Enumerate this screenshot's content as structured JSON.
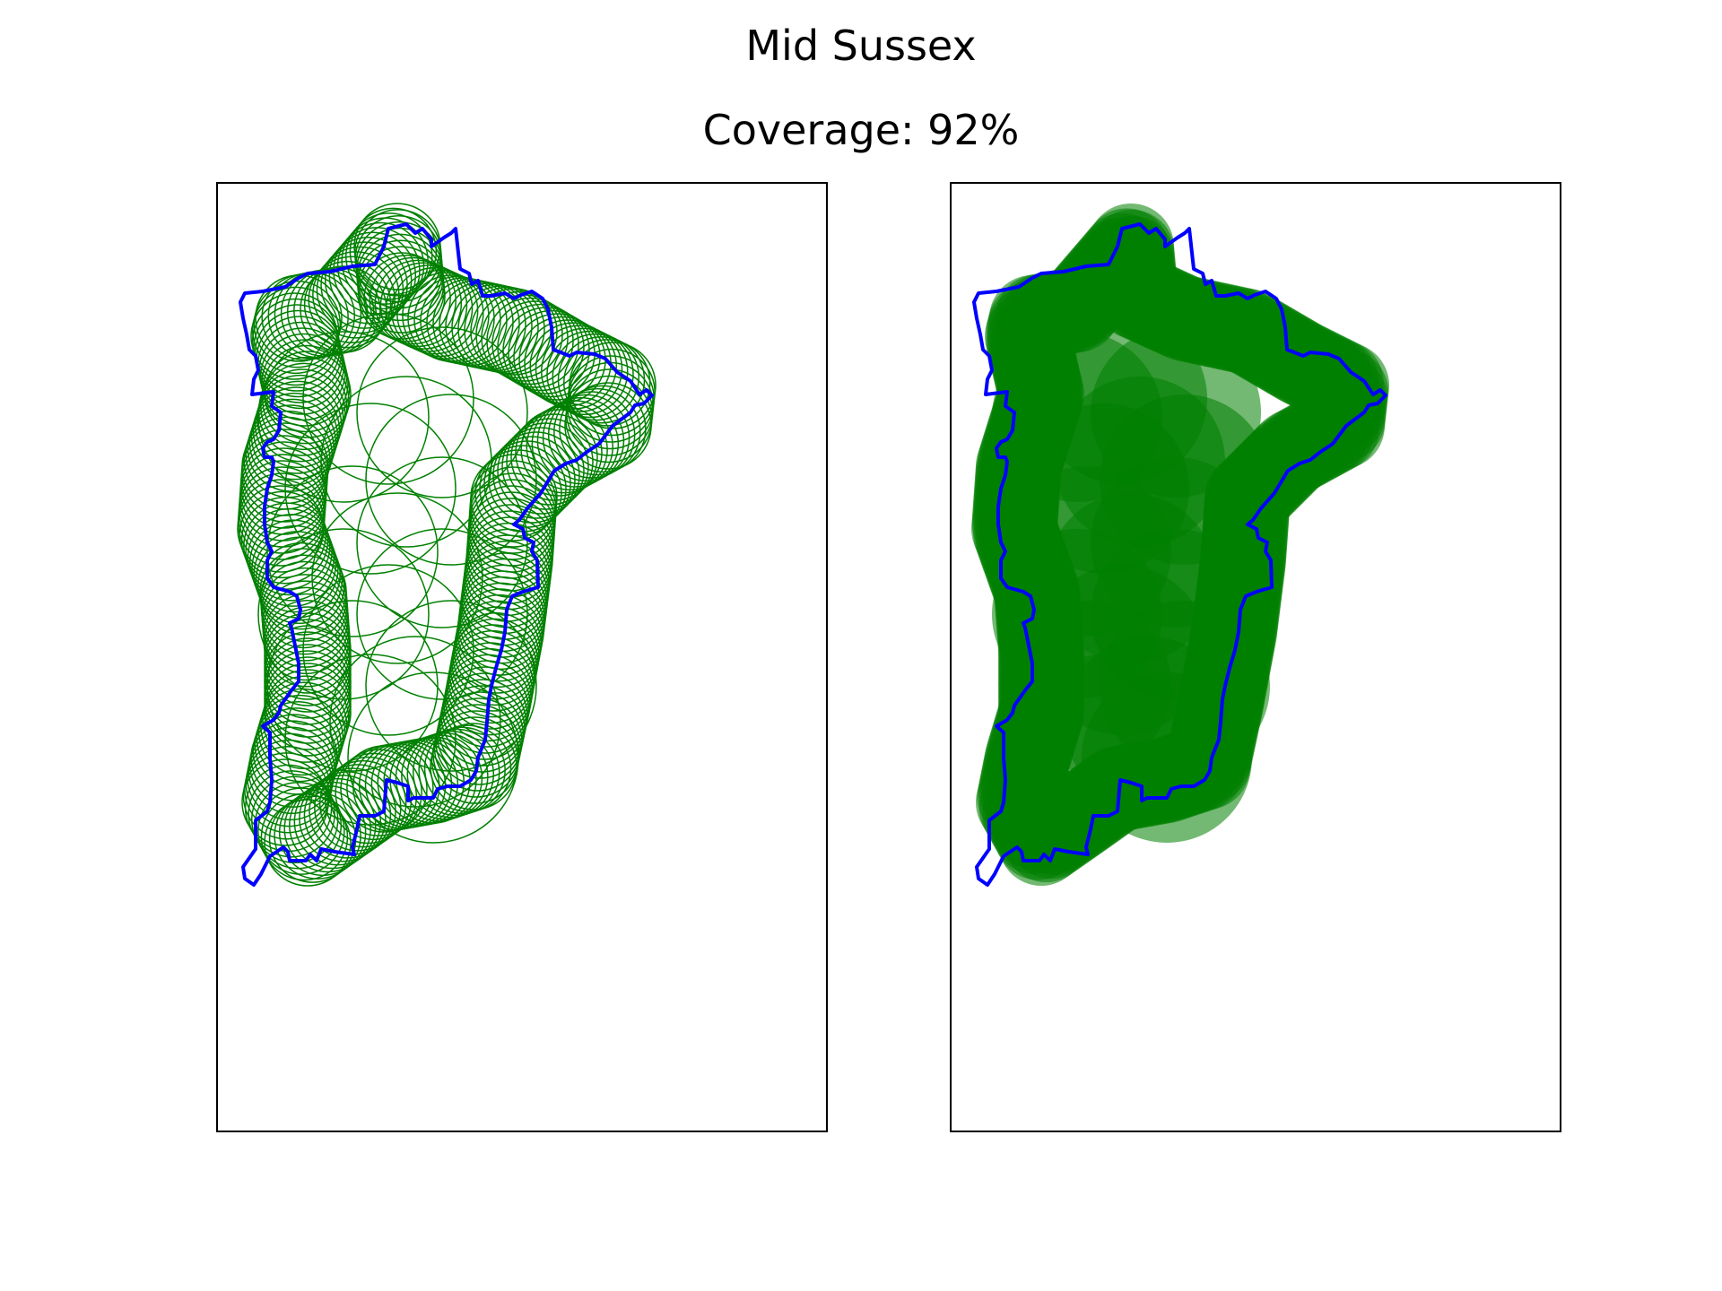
{
  "title": "Mid Sussex",
  "subtitle": "Coverage: 92%",
  "colors": {
    "boundary": "#0000ff",
    "circle": "#008000",
    "frame": "#000000",
    "background": "#ffffff"
  },
  "panels": [
    {
      "id": "outline-circles",
      "style": "outline"
    },
    {
      "id": "filled-circles",
      "style": "filled"
    }
  ]
}
